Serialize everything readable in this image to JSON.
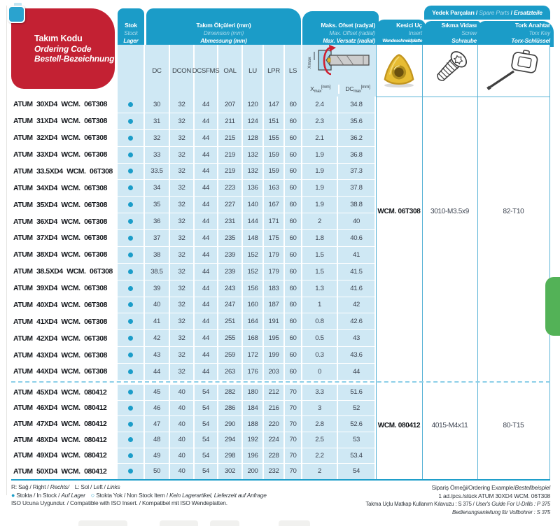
{
  "colors": {
    "accent_blue": "#1b9cc8",
    "light_blue": "#cfe8f4",
    "red": "#c32133",
    "green_tab": "#53b257",
    "dot_teal": "#1b9dc9",
    "line_cyan": "#58b3d6"
  },
  "header": {
    "tool_code": {
      "tr": "Takım Kodu",
      "en": "Ordering Code",
      "de": "Bestell-Bezeichnung"
    },
    "stock": {
      "tr": "Stok",
      "en": "Stock",
      "de": "Lager"
    },
    "dimensions": {
      "tr": "Takım Ölçüleri (mm)",
      "en": "Dimension (mm)",
      "de": "Abmessung (mm)"
    },
    "max_offset": {
      "tr": "Maks. Ofset (radyal)",
      "en": "Max. Offset (radial)",
      "de": "Max. Versatz (radial)",
      "x_base": "X",
      "dc_base": "DC",
      "sub": "max",
      "unit": "[mm]",
      "diagram_axis": "Xmax"
    },
    "insert": {
      "tr": "Kesici Uç",
      "en": "Insert",
      "de": "Wendeschneidplatte"
    },
    "spare_parts": {
      "tr": "Yedek Parçaları",
      "sep1": " / ",
      "en": "Spare Parts",
      "sep2": " / ",
      "de": "Ersatzteile"
    },
    "screw": {
      "tr": "Sıkma Vidası",
      "en": "Screw",
      "de": "Schraube"
    },
    "torx": {
      "tr": "Tork Anahtar",
      "en": "Torx Key",
      "de": "Torx-Schlüssel"
    }
  },
  "table": {
    "dim_columns": [
      "DC",
      "DCON",
      "DCSFMS",
      "OAL",
      "LU",
      "LPR",
      "LS"
    ],
    "rows": [
      {
        "code": "ATUM 30XD4 WCM. 06T308",
        "dc": "30",
        "dcon": "32",
        "dcsfms": "44",
        "oal": "207",
        "lu": "120",
        "lpr": "147",
        "ls": "60",
        "xmax": "2.4",
        "dcmax": "34.8",
        "group": 1
      },
      {
        "code": "ATUM 31XD4 WCM. 06T308",
        "dc": "31",
        "dcon": "32",
        "dcsfms": "44",
        "oal": "211",
        "lu": "124",
        "lpr": "151",
        "ls": "60",
        "xmax": "2.3",
        "dcmax": "35.6",
        "group": 1
      },
      {
        "code": "ATUM 32XD4 WCM. 06T308",
        "dc": "32",
        "dcon": "32",
        "dcsfms": "44",
        "oal": "215",
        "lu": "128",
        "lpr": "155",
        "ls": "60",
        "xmax": "2.1",
        "dcmax": "36.2",
        "group": 1
      },
      {
        "code": "ATUM 33XD4 WCM. 06T308",
        "dc": "33",
        "dcon": "32",
        "dcsfms": "44",
        "oal": "219",
        "lu": "132",
        "lpr": "159",
        "ls": "60",
        "xmax": "1.9",
        "dcmax": "36.8",
        "group": 1
      },
      {
        "code": "ATUM 33.5XD4 WCM. 06T308",
        "dc": "33.5",
        "dcon": "32",
        "dcsfms": "44",
        "oal": "219",
        "lu": "132",
        "lpr": "159",
        "ls": "60",
        "xmax": "1.9",
        "dcmax": "37.3",
        "group": 1
      },
      {
        "code": "ATUM 34XD4 WCM. 06T308",
        "dc": "34",
        "dcon": "32",
        "dcsfms": "44",
        "oal": "223",
        "lu": "136",
        "lpr": "163",
        "ls": "60",
        "xmax": "1.9",
        "dcmax": "37.8",
        "group": 1
      },
      {
        "code": "ATUM 35XD4 WCM. 06T308",
        "dc": "35",
        "dcon": "32",
        "dcsfms": "44",
        "oal": "227",
        "lu": "140",
        "lpr": "167",
        "ls": "60",
        "xmax": "1.9",
        "dcmax": "38.8",
        "group": 1
      },
      {
        "code": "ATUM 36XD4 WCM. 06T308",
        "dc": "36",
        "dcon": "32",
        "dcsfms": "44",
        "oal": "231",
        "lu": "144",
        "lpr": "171",
        "ls": "60",
        "xmax": "2",
        "dcmax": "40",
        "group": 1
      },
      {
        "code": "ATUM 37XD4 WCM. 06T308",
        "dc": "37",
        "dcon": "32",
        "dcsfms": "44",
        "oal": "235",
        "lu": "148",
        "lpr": "175",
        "ls": "60",
        "xmax": "1.8",
        "dcmax": "40.6",
        "group": 1
      },
      {
        "code": "ATUM 38XD4 WCM. 06T308",
        "dc": "38",
        "dcon": "32",
        "dcsfms": "44",
        "oal": "239",
        "lu": "152",
        "lpr": "179",
        "ls": "60",
        "xmax": "1.5",
        "dcmax": "41",
        "group": 1
      },
      {
        "code": "ATUM 38.5XD4 WCM. 06T308",
        "dc": "38.5",
        "dcon": "32",
        "dcsfms": "44",
        "oal": "239",
        "lu": "152",
        "lpr": "179",
        "ls": "60",
        "xmax": "1.5",
        "dcmax": "41.5",
        "group": 1
      },
      {
        "code": "ATUM 39XD4 WCM. 06T308",
        "dc": "39",
        "dcon": "32",
        "dcsfms": "44",
        "oal": "243",
        "lu": "156",
        "lpr": "183",
        "ls": "60",
        "xmax": "1.3",
        "dcmax": "41.6",
        "group": 1
      },
      {
        "code": "ATUM 40XD4 WCM. 06T308",
        "dc": "40",
        "dcon": "32",
        "dcsfms": "44",
        "oal": "247",
        "lu": "160",
        "lpr": "187",
        "ls": "60",
        "xmax": "1",
        "dcmax": "42",
        "group": 1
      },
      {
        "code": "ATUM 41XD4 WCM. 06T308",
        "dc": "41",
        "dcon": "32",
        "dcsfms": "44",
        "oal": "251",
        "lu": "164",
        "lpr": "191",
        "ls": "60",
        "xmax": "0.8",
        "dcmax": "42.6",
        "group": 1
      },
      {
        "code": "ATUM 42XD4 WCM. 06T308",
        "dc": "42",
        "dcon": "32",
        "dcsfms": "44",
        "oal": "255",
        "lu": "168",
        "lpr": "195",
        "ls": "60",
        "xmax": "0.5",
        "dcmax": "43",
        "group": 1
      },
      {
        "code": "ATUM 43XD4 WCM. 06T308",
        "dc": "43",
        "dcon": "32",
        "dcsfms": "44",
        "oal": "259",
        "lu": "172",
        "lpr": "199",
        "ls": "60",
        "xmax": "0.3",
        "dcmax": "43.6",
        "group": 1
      },
      {
        "code": "ATUM 44XD4 WCM. 06T308",
        "dc": "44",
        "dcon": "32",
        "dcsfms": "44",
        "oal": "263",
        "lu": "176",
        "lpr": "203",
        "ls": "60",
        "xmax": "0",
        "dcmax": "44",
        "group": 1
      },
      {
        "code": "ATUM 45XD4 WCM. 080412",
        "dc": "45",
        "dcon": "40",
        "dcsfms": "54",
        "oal": "282",
        "lu": "180",
        "lpr": "212",
        "ls": "70",
        "xmax": "3.3",
        "dcmax": "51.6",
        "group": 2
      },
      {
        "code": "ATUM 46XD4 WCM. 080412",
        "dc": "46",
        "dcon": "40",
        "dcsfms": "54",
        "oal": "286",
        "lu": "184",
        "lpr": "216",
        "ls": "70",
        "xmax": "3",
        "dcmax": "52",
        "group": 2
      },
      {
        "code": "ATUM 47XD4 WCM. 080412",
        "dc": "47",
        "dcon": "40",
        "dcsfms": "54",
        "oal": "290",
        "lu": "188",
        "lpr": "220",
        "ls": "70",
        "xmax": "2.8",
        "dcmax": "52.6",
        "group": 2
      },
      {
        "code": "ATUM 48XD4 WCM. 080412",
        "dc": "48",
        "dcon": "40",
        "dcsfms": "54",
        "oal": "294",
        "lu": "192",
        "lpr": "224",
        "ls": "70",
        "xmax": "2.5",
        "dcmax": "53",
        "group": 2
      },
      {
        "code": "ATUM 49XD4 WCM. 080412",
        "dc": "49",
        "dcon": "40",
        "dcsfms": "54",
        "oal": "298",
        "lu": "196",
        "lpr": "228",
        "ls": "70",
        "xmax": "2.2",
        "dcmax": "53.4",
        "group": 2
      },
      {
        "code": "ATUM 50XD4 WCM. 080412",
        "dc": "50",
        "dcon": "40",
        "dcsfms": "54",
        "oal": "302",
        "lu": "200",
        "lpr": "232",
        "ls": "70",
        "xmax": "2",
        "dcmax": "54",
        "group": 2
      }
    ],
    "groups": [
      {
        "insert": "WCM. 06T308",
        "screw": "3010-M3.5x9",
        "torx": "82-T10"
      },
      {
        "insert": "WCM. 080412",
        "screw": "4015-M4x11",
        "torx": "80-T15"
      }
    ]
  },
  "footnotes": {
    "line1_a": "R: Sağ / Right / ",
    "line1_b": "Rechts/",
    "line1_c": "L: Sol / Left / ",
    "line1_d": "Links",
    "line2_bullet": "●",
    "line2_a": " Stokta / In Stock / ",
    "line2_b": "Auf Lager",
    "line2_circle": "○",
    "line2_c": " Stokta Yok / Non Stock Item / ",
    "line2_d": "Kein Lagerartikel, Lieferzeit auf Anfrage",
    "line3": "ISO Ucuna Uygundur. / Compatible with ISO Insert. / Kompatibel mit ISO Wendeplatten."
  },
  "ordering_example": {
    "line1_a": "Sipariş Örneği/Ordering Example/",
    "line1_b": "Bestellbeispiel",
    "line2": "1 ad./pcs./stück ATUM 30XD4 WCM. 06T308",
    "line3_a": "Takma Uçlu Matkap Kullanım Kılavuzu : S 375 / ",
    "line3_b": "User's Guide For U-Drills : P 375",
    "line4": "Bedienungsanleitung für Vollbohrer : S 375"
  }
}
